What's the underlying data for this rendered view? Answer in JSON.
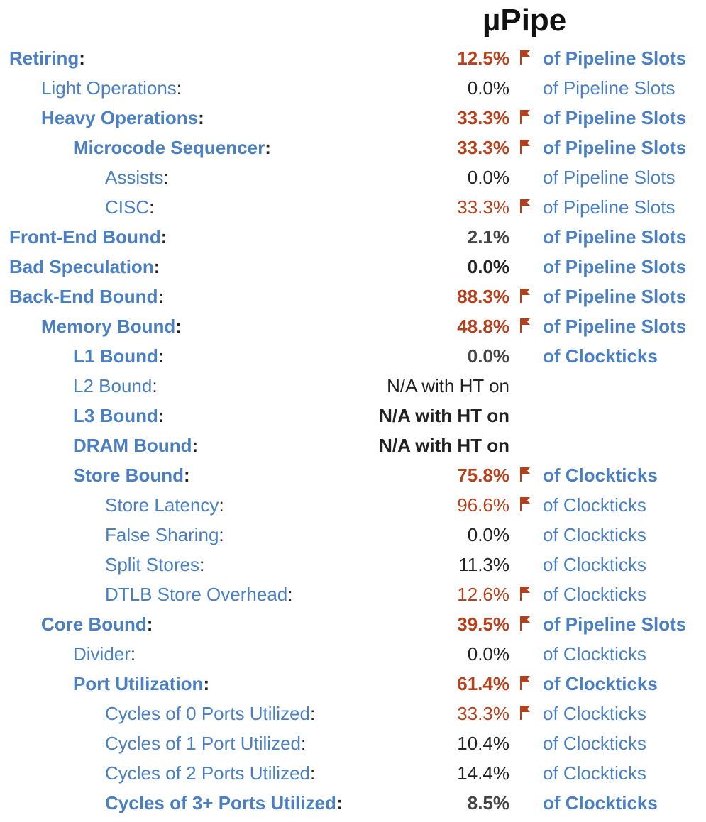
{
  "title": "µPipe",
  "rows": [
    {
      "label": "Retiring",
      "value": "12.5%",
      "unit": "of Pipeline Slots",
      "level": 0,
      "bold": true,
      "style": "hi",
      "flag": true
    },
    {
      "label": "Light Operations",
      "value": "0.0%",
      "unit": "of Pipeline Slots",
      "level": 1,
      "bold": false,
      "style": "n",
      "flag": false
    },
    {
      "label": "Heavy Operations",
      "value": "33.3%",
      "unit": "of Pipeline Slots",
      "level": 1,
      "bold": true,
      "style": "hi",
      "flag": true
    },
    {
      "label": "Microcode Sequencer",
      "value": "33.3%",
      "unit": "of Pipeline Slots",
      "level": 2,
      "bold": true,
      "style": "hi",
      "flag": true
    },
    {
      "label": "Assists",
      "value": "0.0%",
      "unit": "of Pipeline Slots",
      "level": 3,
      "bold": false,
      "style": "n",
      "flag": false
    },
    {
      "label": "CISC",
      "value": "33.3%",
      "unit": "of Pipeline Slots",
      "level": 3,
      "bold": false,
      "style": "hi",
      "flag": true
    },
    {
      "label": "Front-End Bound",
      "value": "2.1%",
      "unit": "of Pipeline Slots",
      "level": 0,
      "bold": true,
      "style": "gray",
      "flag": false
    },
    {
      "label": "Bad Speculation",
      "value": "0.0%",
      "unit": "of Pipeline Slots",
      "level": 0,
      "bold": true,
      "style": "n",
      "flag": false
    },
    {
      "label": "Back-End Bound",
      "value": "88.3%",
      "unit": "of Pipeline Slots",
      "level": 0,
      "bold": true,
      "style": "hi",
      "flag": true
    },
    {
      "label": "Memory Bound",
      "value": "48.8%",
      "unit": "of Pipeline Slots",
      "level": 1,
      "bold": true,
      "style": "hi",
      "flag": true
    },
    {
      "label": "L1 Bound",
      "value": "0.0%",
      "unit": "of Clockticks",
      "level": 2,
      "bold": true,
      "style": "gray",
      "flag": false
    },
    {
      "label": "L2 Bound",
      "value": "N/A with HT on",
      "unit": "",
      "level": 2,
      "bold": false,
      "style": "n",
      "flag": false
    },
    {
      "label": "L3 Bound",
      "value": "N/A with HT on",
      "unit": "",
      "level": 2,
      "bold": true,
      "style": "n",
      "flag": false
    },
    {
      "label": "DRAM Bound",
      "value": "N/A with HT on",
      "unit": "",
      "level": 2,
      "bold": true,
      "style": "n",
      "flag": false
    },
    {
      "label": "Store Bound",
      "value": "75.8%",
      "unit": "of Clockticks",
      "level": 2,
      "bold": true,
      "style": "hi",
      "flag": true
    },
    {
      "label": "Store Latency",
      "value": "96.6%",
      "unit": "of Clockticks",
      "level": 3,
      "bold": false,
      "style": "hi",
      "flag": true
    },
    {
      "label": "False Sharing",
      "value": "0.0%",
      "unit": "of Clockticks",
      "level": 3,
      "bold": false,
      "style": "n",
      "flag": false
    },
    {
      "label": "Split Stores",
      "value": "11.3%",
      "unit": "of Clockticks",
      "level": 3,
      "bold": false,
      "style": "n",
      "flag": false
    },
    {
      "label": "DTLB Store Overhead",
      "value": "12.6%",
      "unit": "of Clockticks",
      "level": 3,
      "bold": false,
      "style": "hi",
      "flag": true
    },
    {
      "label": "Core Bound",
      "value": "39.5%",
      "unit": "of Pipeline Slots",
      "level": 1,
      "bold": true,
      "style": "hi",
      "flag": true
    },
    {
      "label": "Divider",
      "value": "0.0%",
      "unit": "of Clockticks",
      "level": 2,
      "bold": false,
      "style": "n",
      "flag": false
    },
    {
      "label": "Port Utilization",
      "value": "61.4%",
      "unit": "of Clockticks",
      "level": 2,
      "bold": true,
      "style": "hi",
      "flag": true
    },
    {
      "label": "Cycles of 0 Ports Utilized",
      "value": "33.3%",
      "unit": "of Clockticks",
      "level": 3,
      "bold": false,
      "style": "hi",
      "flag": true
    },
    {
      "label": "Cycles of 1 Port Utilized",
      "value": "10.4%",
      "unit": "of Clockticks",
      "level": 3,
      "bold": false,
      "style": "n",
      "flag": false
    },
    {
      "label": "Cycles of 2 Ports Utilized",
      "value": "14.4%",
      "unit": "of Clockticks",
      "level": 3,
      "bold": false,
      "style": "n",
      "flag": false
    },
    {
      "label": "Cycles of 3+ Ports Utilized",
      "value": "8.5%",
      "unit": "of Clockticks",
      "level": 3,
      "bold": true,
      "style": "gray",
      "flag": false
    }
  ],
  "colors": {
    "link": "#4a7fc1",
    "highlight": "#b5401c",
    "text": "#222222"
  },
  "flag_icon": "flag-icon"
}
